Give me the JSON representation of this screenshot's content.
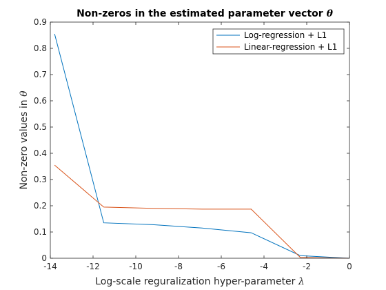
{
  "chart_data": {
    "type": "line",
    "title": "Non-zeros in the estimated parameter vector",
    "title_symbol": "θ",
    "xlabel": "Log-scale reguralization hyper-parameter",
    "xlabel_symbol": "λ",
    "ylabel": "Non-zero values in",
    "ylabel_symbol": "θ",
    "xlim": [
      -14,
      0
    ],
    "ylim": [
      0,
      0.9
    ],
    "xticks": [
      -14,
      -12,
      -10,
      -8,
      -6,
      -4,
      -2,
      0
    ],
    "xtick_labels": [
      "-14",
      "-12",
      "-10",
      "-8",
      "-6",
      "-4",
      "-2",
      "0"
    ],
    "yticks": [
      0,
      0.1,
      0.2,
      0.3,
      0.4,
      0.5,
      0.6,
      0.7,
      0.8,
      0.9
    ],
    "ytick_labels": [
      "0",
      "0.1",
      "0.2",
      "0.3",
      "0.4",
      "0.5",
      "0.6",
      "0.7",
      "0.8",
      "0.9"
    ],
    "grid": false,
    "legend_position": "top-right",
    "series": [
      {
        "name": "Log-regression + L1",
        "color": "#0072BD",
        "x": [
          -13.8,
          -11.5,
          -9.2,
          -6.9,
          -4.6,
          -2.3,
          0
        ],
        "y": [
          0.855,
          0.135,
          0.128,
          0.115,
          0.097,
          0.01,
          0.0
        ]
      },
      {
        "name": "Linear-regression + L1",
        "color": "#D95319",
        "x": [
          -13.8,
          -11.5,
          -9.2,
          -6.9,
          -4.6,
          -2.3,
          0
        ],
        "y": [
          0.355,
          0.195,
          0.19,
          0.187,
          0.187,
          0.003,
          0.0
        ]
      }
    ]
  }
}
